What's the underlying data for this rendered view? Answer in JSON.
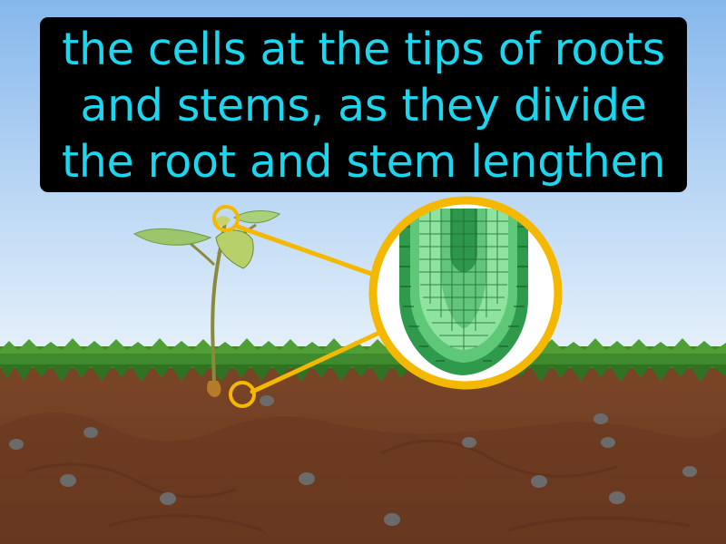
{
  "caption": {
    "lines": [
      "the cells at the tips of roots",
      "and stems, as they divide",
      "the root and stem lengthen"
    ]
  },
  "colors": {
    "caption_text": "#1ad6ee",
    "caption_background": "#000000",
    "highlight": "#f5b800",
    "sky_top": "#86b8ec",
    "sky_bottom": "#e8f2fb",
    "grass": "#3f8a2c",
    "soil": "#6e3d22",
    "cell_dark": "#1f7a3a",
    "cell_light": "#8fe3a0"
  },
  "icons": [
    "seedling-icon",
    "root-tip-cells-icon",
    "stem-tip-marker-icon",
    "root-tip-marker-icon"
  ]
}
